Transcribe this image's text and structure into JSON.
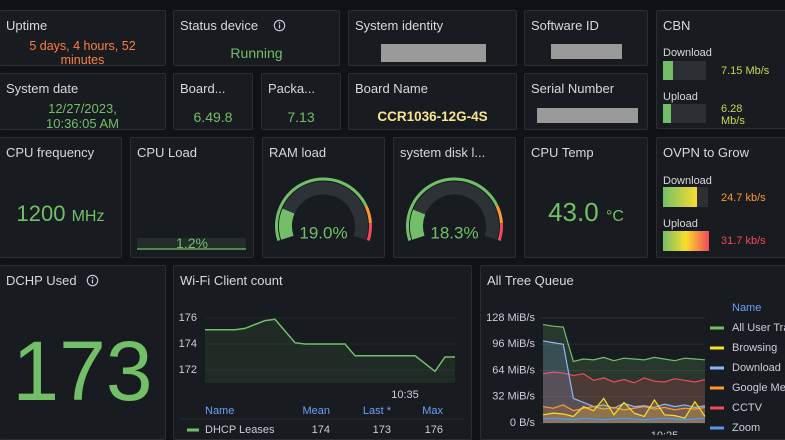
{
  "panels": {
    "uptime": {
      "title": "Uptime",
      "value": "5 days, 4 hours, 52 minutes"
    },
    "status_device": {
      "title": "Status device",
      "value": "Running"
    },
    "system_identity": {
      "title": "System identity"
    },
    "software_id": {
      "title": "Software ID"
    },
    "cbn": {
      "title": "CBN",
      "rows": [
        {
          "label": "Download",
          "value": "7.15 Mb/s"
        },
        {
          "label": "Upload",
          "value": "6.28 Mb/s"
        }
      ]
    },
    "system_date": {
      "title": "System date",
      "value": "12/27/2023, 10:36:05 AM"
    },
    "board": {
      "title": "Board...",
      "value": "6.49.8"
    },
    "package": {
      "title": "Packa...",
      "value": "7.13"
    },
    "board_name": {
      "title": "Board Name",
      "value": "CCR1036-12G-4S"
    },
    "serial_number": {
      "title": "Serial Number"
    },
    "cpu_frequency": {
      "title": "CPU frequency",
      "value": "1200",
      "unit": "MHz"
    },
    "cpu_load": {
      "title": "CPU Load",
      "value": "1.2%"
    },
    "ram_load": {
      "title": "RAM load",
      "value": 19,
      "value_label": "19.0%"
    },
    "system_disk": {
      "title": "system disk l...",
      "value": 18.3,
      "value_label": "18.3%"
    },
    "cpu_temp": {
      "title": "CPU Temp",
      "value": "43.0",
      "unit": "°C"
    },
    "ovpn": {
      "title": "OVPN to Grow",
      "rows": [
        {
          "label": "Download",
          "value": "24.7 kb/s"
        },
        {
          "label": "Upload",
          "value": "31.7 kb/s"
        }
      ]
    },
    "dchp_used": {
      "title": "DCHP Used",
      "value": "173"
    },
    "wifi_client_count": {
      "title": "Wi-Fi Client count",
      "chart": {
        "type": "line",
        "x": [
          null,
          null,
          null,
          null,
          null,
          null,
          null,
          null,
          null,
          null,
          null,
          null,
          null,
          null,
          null,
          null,
          null,
          null,
          null,
          null,
          "10:35",
          null,
          null,
          null,
          null,
          null
        ],
        "series": [
          {
            "name": "DHCP Leases",
            "color": "#73bf69",
            "values": [
              175.1,
              175.1,
              175.1,
              175.1,
              175.2,
              175.5,
              175.8,
              175.9,
              175.0,
              174.1,
              174.0,
              174.0,
              174.0,
              174.0,
              174.0,
              173.1,
              173.1,
              173.1,
              173.1,
              173.1,
              173.1,
              173.1,
              172.5,
              171.9,
              173.0,
              173.0
            ]
          }
        ],
        "ylim": [
          171,
          177
        ],
        "yticks": [
          172,
          174,
          176
        ]
      },
      "legend_table": {
        "headers": [
          "Name",
          "Mean",
          "Last *",
          "Max"
        ],
        "rows": [
          [
            "DHCP Leases",
            174,
            173,
            176
          ]
        ]
      }
    },
    "all_tree_queue": {
      "title": "All Tree Queue",
      "chart": {
        "type": "area",
        "x": [
          null,
          null,
          null,
          null,
          null,
          null,
          null,
          null,
          null,
          null,
          null,
          null,
          "10:25",
          null,
          null,
          null,
          null
        ],
        "legend_header": "Name",
        "series": [
          {
            "name": "All User Tra",
            "color": "#73bf69",
            "values": [
              120,
              118,
              117,
              75,
              78,
              77,
              80,
              76,
              79,
              78,
              77,
              80,
              78,
              76,
              79,
              78,
              77
            ]
          },
          {
            "name": "Browsing",
            "color": "#fade2a",
            "values": [
              10,
              12,
              11,
              8,
              20,
              15,
              30,
              10,
              25,
              12,
              8,
              28,
              10,
              9,
              6,
              26,
              8
            ]
          },
          {
            "name": "Download",
            "color": "#8ab8ff",
            "values": [
              100,
              98,
              96,
              30,
              25,
              20,
              22,
              18,
              24,
              20,
              21,
              19,
              23,
              20,
              22,
              19,
              21
            ]
          },
          {
            "name": "Google Me",
            "color": "#ff9830",
            "values": [
              20,
              18,
              22,
              15,
              18,
              20,
              17,
              19,
              16,
              18,
              20,
              17,
              19,
              16,
              18,
              17,
              19
            ]
          },
          {
            "name": "CCTV",
            "color": "#f2495c",
            "values": [
              60,
              62,
              61,
              58,
              60,
              52,
              55,
              50,
              53,
              49,
              55,
              51,
              50,
              54,
              52,
              50,
              53
            ]
          },
          {
            "name": "Zoom",
            "color": "#5794f2",
            "values": [
              5,
              6,
              5,
              4,
              6,
              5,
              4,
              5,
              6,
              5,
              4,
              5,
              6,
              5,
              4,
              5,
              6
            ]
          }
        ],
        "ylim": [
          0,
          128
        ],
        "yticks": [
          {
            "value": 0,
            "label": "0 B/s"
          },
          {
            "value": 32,
            "label": "32 MiB/s"
          },
          {
            "value": 64,
            "label": "64 MiB/s"
          },
          {
            "value": 96,
            "label": "96 MiB/s"
          },
          {
            "value": 128,
            "label": "128 MiB/s"
          }
        ]
      }
    }
  }
}
